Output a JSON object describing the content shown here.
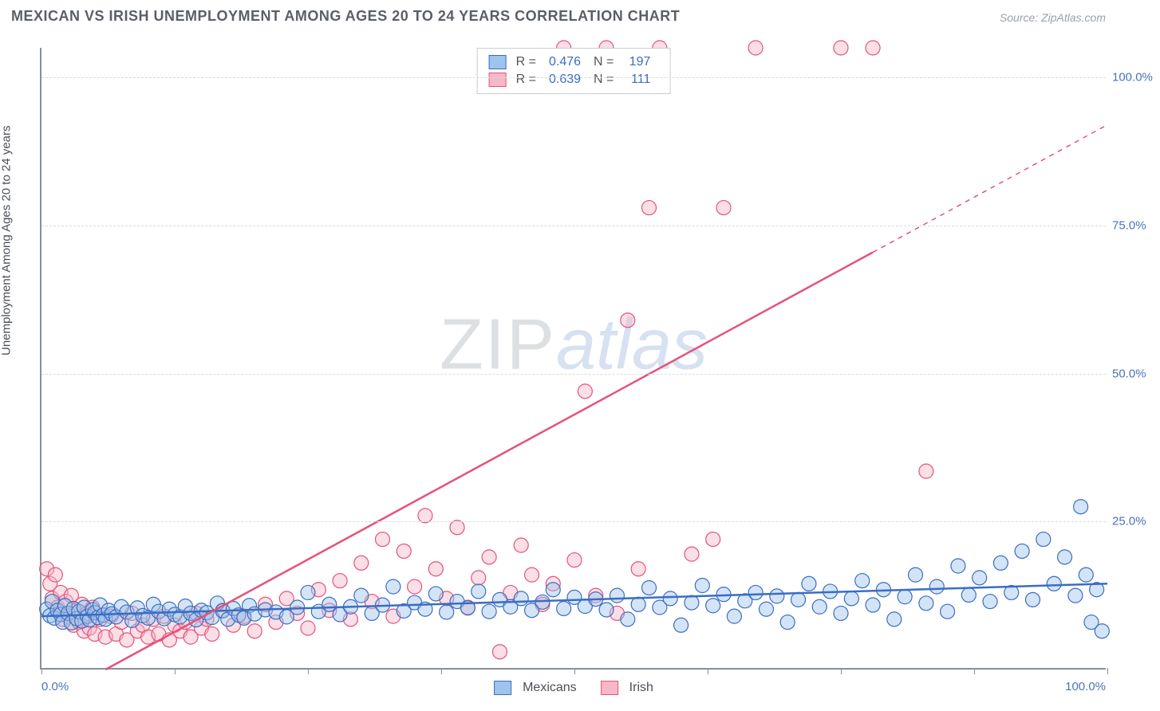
{
  "title": "MEXICAN VS IRISH UNEMPLOYMENT AMONG AGES 20 TO 24 YEARS CORRELATION CHART",
  "source": "Source: ZipAtlas.com",
  "yaxis_label": "Unemployment Among Ages 20 to 24 years",
  "watermark": {
    "part1": "ZIP",
    "part2": "atlas"
  },
  "chart": {
    "type": "scatter",
    "background_color": "#ffffff",
    "grid_color": "#d8dbdf",
    "axis_color": "#888f98",
    "tick_label_color": "#4a73b8",
    "title_color": "#5a5f66",
    "title_fontsize": 18,
    "label_fontsize": 15,
    "xlim": [
      0,
      100
    ],
    "ylim": [
      0,
      105
    ],
    "ytick_values": [
      25,
      50,
      75,
      100
    ],
    "ytick_labels": [
      "25.0%",
      "50.0%",
      "75.0%",
      "100.0%"
    ],
    "xtick_values": [
      0,
      12.5,
      25,
      37.5,
      50,
      62.5,
      75,
      87.5,
      100
    ],
    "xtick_labels": {
      "first": "0.0%",
      "last": "100.0%"
    },
    "marker_radius": 9,
    "marker_fill_opacity": 0.45,
    "marker_stroke_width": 1.2,
    "line_width": 2.5,
    "series": [
      {
        "name": "Mexicans",
        "color_fill": "#9ec3ec",
        "color_stroke": "#3b6dc2",
        "R": "0.476",
        "N": "197",
        "regression": {
          "x1": 0,
          "y1": 9.0,
          "x2": 100,
          "y2": 14.5,
          "dash_from_x": null
        },
        "points": [
          [
            0.5,
            10.2
          ],
          [
            0.8,
            9.1
          ],
          [
            1.0,
            11.5
          ],
          [
            1.2,
            8.7
          ],
          [
            1.5,
            10.0
          ],
          [
            1.8,
            9.3
          ],
          [
            2.0,
            8.0
          ],
          [
            2.2,
            10.8
          ],
          [
            2.5,
            9.5
          ],
          [
            2.8,
            7.9
          ],
          [
            3.0,
            10.3
          ],
          [
            3.3,
            8.6
          ],
          [
            3.5,
            9.8
          ],
          [
            3.8,
            8.2
          ],
          [
            4.0,
            10.5
          ],
          [
            4.3,
            9.0
          ],
          [
            4.5,
            8.4
          ],
          [
            4.8,
            10.1
          ],
          [
            5.0,
            9.6
          ],
          [
            5.3,
            8.8
          ],
          [
            5.5,
            10.9
          ],
          [
            5.8,
            9.2
          ],
          [
            6.0,
            8.5
          ],
          [
            6.3,
            10.0
          ],
          [
            6.6,
            9.4
          ],
          [
            7.0,
            8.9
          ],
          [
            7.5,
            10.6
          ],
          [
            8.0,
            9.7
          ],
          [
            8.5,
            8.3
          ],
          [
            9.0,
            10.4
          ],
          [
            9.5,
            9.1
          ],
          [
            10.0,
            8.7
          ],
          [
            10.5,
            11.0
          ],
          [
            11.0,
            9.8
          ],
          [
            11.5,
            8.6
          ],
          [
            12.0,
            10.2
          ],
          [
            12.5,
            9.3
          ],
          [
            13.0,
            8.9
          ],
          [
            13.5,
            10.7
          ],
          [
            14.0,
            9.5
          ],
          [
            14.5,
            8.4
          ],
          [
            15.0,
            10.0
          ],
          [
            15.5,
            9.6
          ],
          [
            16.0,
            8.8
          ],
          [
            16.5,
            11.2
          ],
          [
            17.0,
            9.9
          ],
          [
            17.5,
            8.5
          ],
          [
            18.0,
            10.3
          ],
          [
            18.5,
            9.2
          ],
          [
            19.0,
            8.7
          ],
          [
            19.5,
            10.8
          ],
          [
            20.0,
            9.4
          ],
          [
            21.0,
            10.1
          ],
          [
            22.0,
            9.7
          ],
          [
            23.0,
            8.9
          ],
          [
            24.0,
            10.5
          ],
          [
            25.0,
            13.0
          ],
          [
            26.0,
            9.8
          ],
          [
            27.0,
            11.0
          ],
          [
            28.0,
            9.3
          ],
          [
            29.0,
            10.6
          ],
          [
            30.0,
            12.5
          ],
          [
            31.0,
            9.5
          ],
          [
            32.0,
            10.9
          ],
          [
            33.0,
            14.0
          ],
          [
            34.0,
            9.9
          ],
          [
            35.0,
            11.3
          ],
          [
            36.0,
            10.2
          ],
          [
            37.0,
            12.8
          ],
          [
            38.0,
            9.7
          ],
          [
            39.0,
            11.5
          ],
          [
            40.0,
            10.4
          ],
          [
            41.0,
            13.2
          ],
          [
            42.0,
            9.8
          ],
          [
            43.0,
            11.8
          ],
          [
            44.0,
            10.6
          ],
          [
            45.0,
            12.0
          ],
          [
            46.0,
            10.0
          ],
          [
            47.0,
            11.4
          ],
          [
            48.0,
            13.5
          ],
          [
            49.0,
            10.3
          ],
          [
            50.0,
            12.2
          ],
          [
            51.0,
            10.7
          ],
          [
            52.0,
            11.9
          ],
          [
            53.0,
            10.1
          ],
          [
            54.0,
            12.5
          ],
          [
            55.0,
            8.5
          ],
          [
            56.0,
            11.0
          ],
          [
            57.0,
            13.8
          ],
          [
            58.0,
            10.5
          ],
          [
            59.0,
            12.0
          ],
          [
            60.0,
            7.5
          ],
          [
            61.0,
            11.3
          ],
          [
            62.0,
            14.2
          ],
          [
            63.0,
            10.8
          ],
          [
            64.0,
            12.7
          ],
          [
            65.0,
            9.0
          ],
          [
            66.0,
            11.6
          ],
          [
            67.0,
            13.0
          ],
          [
            68.0,
            10.2
          ],
          [
            69.0,
            12.4
          ],
          [
            70.0,
            8.0
          ],
          [
            71.0,
            11.8
          ],
          [
            72.0,
            14.5
          ],
          [
            73.0,
            10.6
          ],
          [
            74.0,
            13.2
          ],
          [
            75.0,
            9.5
          ],
          [
            76.0,
            12.0
          ],
          [
            77.0,
            15.0
          ],
          [
            78.0,
            10.9
          ],
          [
            79.0,
            13.5
          ],
          [
            80.0,
            8.5
          ],
          [
            81.0,
            12.3
          ],
          [
            82.0,
            16.0
          ],
          [
            83.0,
            11.2
          ],
          [
            84.0,
            14.0
          ],
          [
            85.0,
            9.8
          ],
          [
            86.0,
            17.5
          ],
          [
            87.0,
            12.6
          ],
          [
            88.0,
            15.5
          ],
          [
            89.0,
            11.5
          ],
          [
            90.0,
            18.0
          ],
          [
            91.0,
            13.0
          ],
          [
            92.0,
            20.0
          ],
          [
            93.0,
            11.8
          ],
          [
            94.0,
            22.0
          ],
          [
            95.0,
            14.5
          ],
          [
            96.0,
            19.0
          ],
          [
            97.0,
            12.5
          ],
          [
            97.5,
            27.5
          ],
          [
            98.0,
            16.0
          ],
          [
            98.5,
            8.0
          ],
          [
            99.0,
            13.5
          ],
          [
            99.5,
            6.5
          ]
        ]
      },
      {
        "name": "Irish",
        "color_fill": "#f5b8c8",
        "color_stroke": "#e5527b",
        "R": "0.639",
        "N": "111",
        "regression": {
          "x1": 6,
          "y1": 0,
          "x2": 100,
          "y2": 92,
          "dash_from_x": 78
        },
        "points": [
          [
            0.5,
            17.0
          ],
          [
            0.8,
            14.5
          ],
          [
            1.0,
            12.0
          ],
          [
            1.3,
            16.0
          ],
          [
            1.5,
            10.5
          ],
          [
            1.8,
            13.0
          ],
          [
            2.0,
            8.5
          ],
          [
            2.3,
            11.5
          ],
          [
            2.5,
            9.0
          ],
          [
            2.8,
            12.5
          ],
          [
            3.0,
            7.5
          ],
          [
            3.3,
            10.0
          ],
          [
            3.5,
            8.0
          ],
          [
            3.8,
            11.0
          ],
          [
            4.0,
            6.5
          ],
          [
            4.3,
            9.5
          ],
          [
            4.5,
            7.0
          ],
          [
            4.8,
            10.5
          ],
          [
            5.0,
            6.0
          ],
          [
            5.5,
            8.5
          ],
          [
            6.0,
            5.5
          ],
          [
            6.5,
            9.0
          ],
          [
            7.0,
            6.0
          ],
          [
            7.5,
            8.0
          ],
          [
            8.0,
            5.0
          ],
          [
            8.5,
            9.5
          ],
          [
            9.0,
            6.5
          ],
          [
            9.5,
            7.5
          ],
          [
            10.0,
            5.5
          ],
          [
            10.5,
            8.5
          ],
          [
            11.0,
            6.0
          ],
          [
            11.5,
            9.0
          ],
          [
            12.0,
            5.0
          ],
          [
            12.5,
            7.5
          ],
          [
            13.0,
            6.5
          ],
          [
            13.5,
            8.0
          ],
          [
            14.0,
            5.5
          ],
          [
            14.5,
            9.5
          ],
          [
            15.0,
            7.0
          ],
          [
            15.5,
            8.5
          ],
          [
            16.0,
            6.0
          ],
          [
            17.0,
            10.0
          ],
          [
            18.0,
            7.5
          ],
          [
            19.0,
            9.0
          ],
          [
            20.0,
            6.5
          ],
          [
            21.0,
            11.0
          ],
          [
            22.0,
            8.0
          ],
          [
            23.0,
            12.0
          ],
          [
            24.0,
            9.5
          ],
          [
            25.0,
            7.0
          ],
          [
            26.0,
            13.5
          ],
          [
            27.0,
            10.0
          ],
          [
            28.0,
            15.0
          ],
          [
            29.0,
            8.5
          ],
          [
            30.0,
            18.0
          ],
          [
            31.0,
            11.5
          ],
          [
            32.0,
            22.0
          ],
          [
            33.0,
            9.0
          ],
          [
            34.0,
            20.0
          ],
          [
            35.0,
            14.0
          ],
          [
            36.0,
            26.0
          ],
          [
            37.0,
            17.0
          ],
          [
            38.0,
            12.0
          ],
          [
            39.0,
            24.0
          ],
          [
            40.0,
            10.5
          ],
          [
            41.0,
            15.5
          ],
          [
            42.0,
            19.0
          ],
          [
            43.0,
            3.0
          ],
          [
            44.0,
            13.0
          ],
          [
            45.0,
            21.0
          ],
          [
            46.0,
            16.0
          ],
          [
            47.0,
            11.0
          ],
          [
            48.0,
            14.5
          ],
          [
            49.0,
            105.0
          ],
          [
            50.0,
            18.5
          ],
          [
            51.0,
            47.0
          ],
          [
            52.0,
            12.5
          ],
          [
            53.0,
            105.0
          ],
          [
            54.0,
            9.5
          ],
          [
            55.0,
            59.0
          ],
          [
            56.0,
            17.0
          ],
          [
            57.0,
            78.0
          ],
          [
            58.0,
            105.0
          ],
          [
            61.0,
            19.5
          ],
          [
            63.0,
            22.0
          ],
          [
            64.0,
            78.0
          ],
          [
            67.0,
            105.0
          ],
          [
            75.0,
            105.0
          ],
          [
            78.0,
            105.0
          ],
          [
            83.0,
            33.5
          ]
        ]
      }
    ],
    "legend_bottom": [
      {
        "label": "Mexicans",
        "fill": "#9ec3ec",
        "stroke": "#3b6dc2"
      },
      {
        "label": "Irish",
        "fill": "#f5b8c8",
        "stroke": "#e5527b"
      }
    ]
  }
}
